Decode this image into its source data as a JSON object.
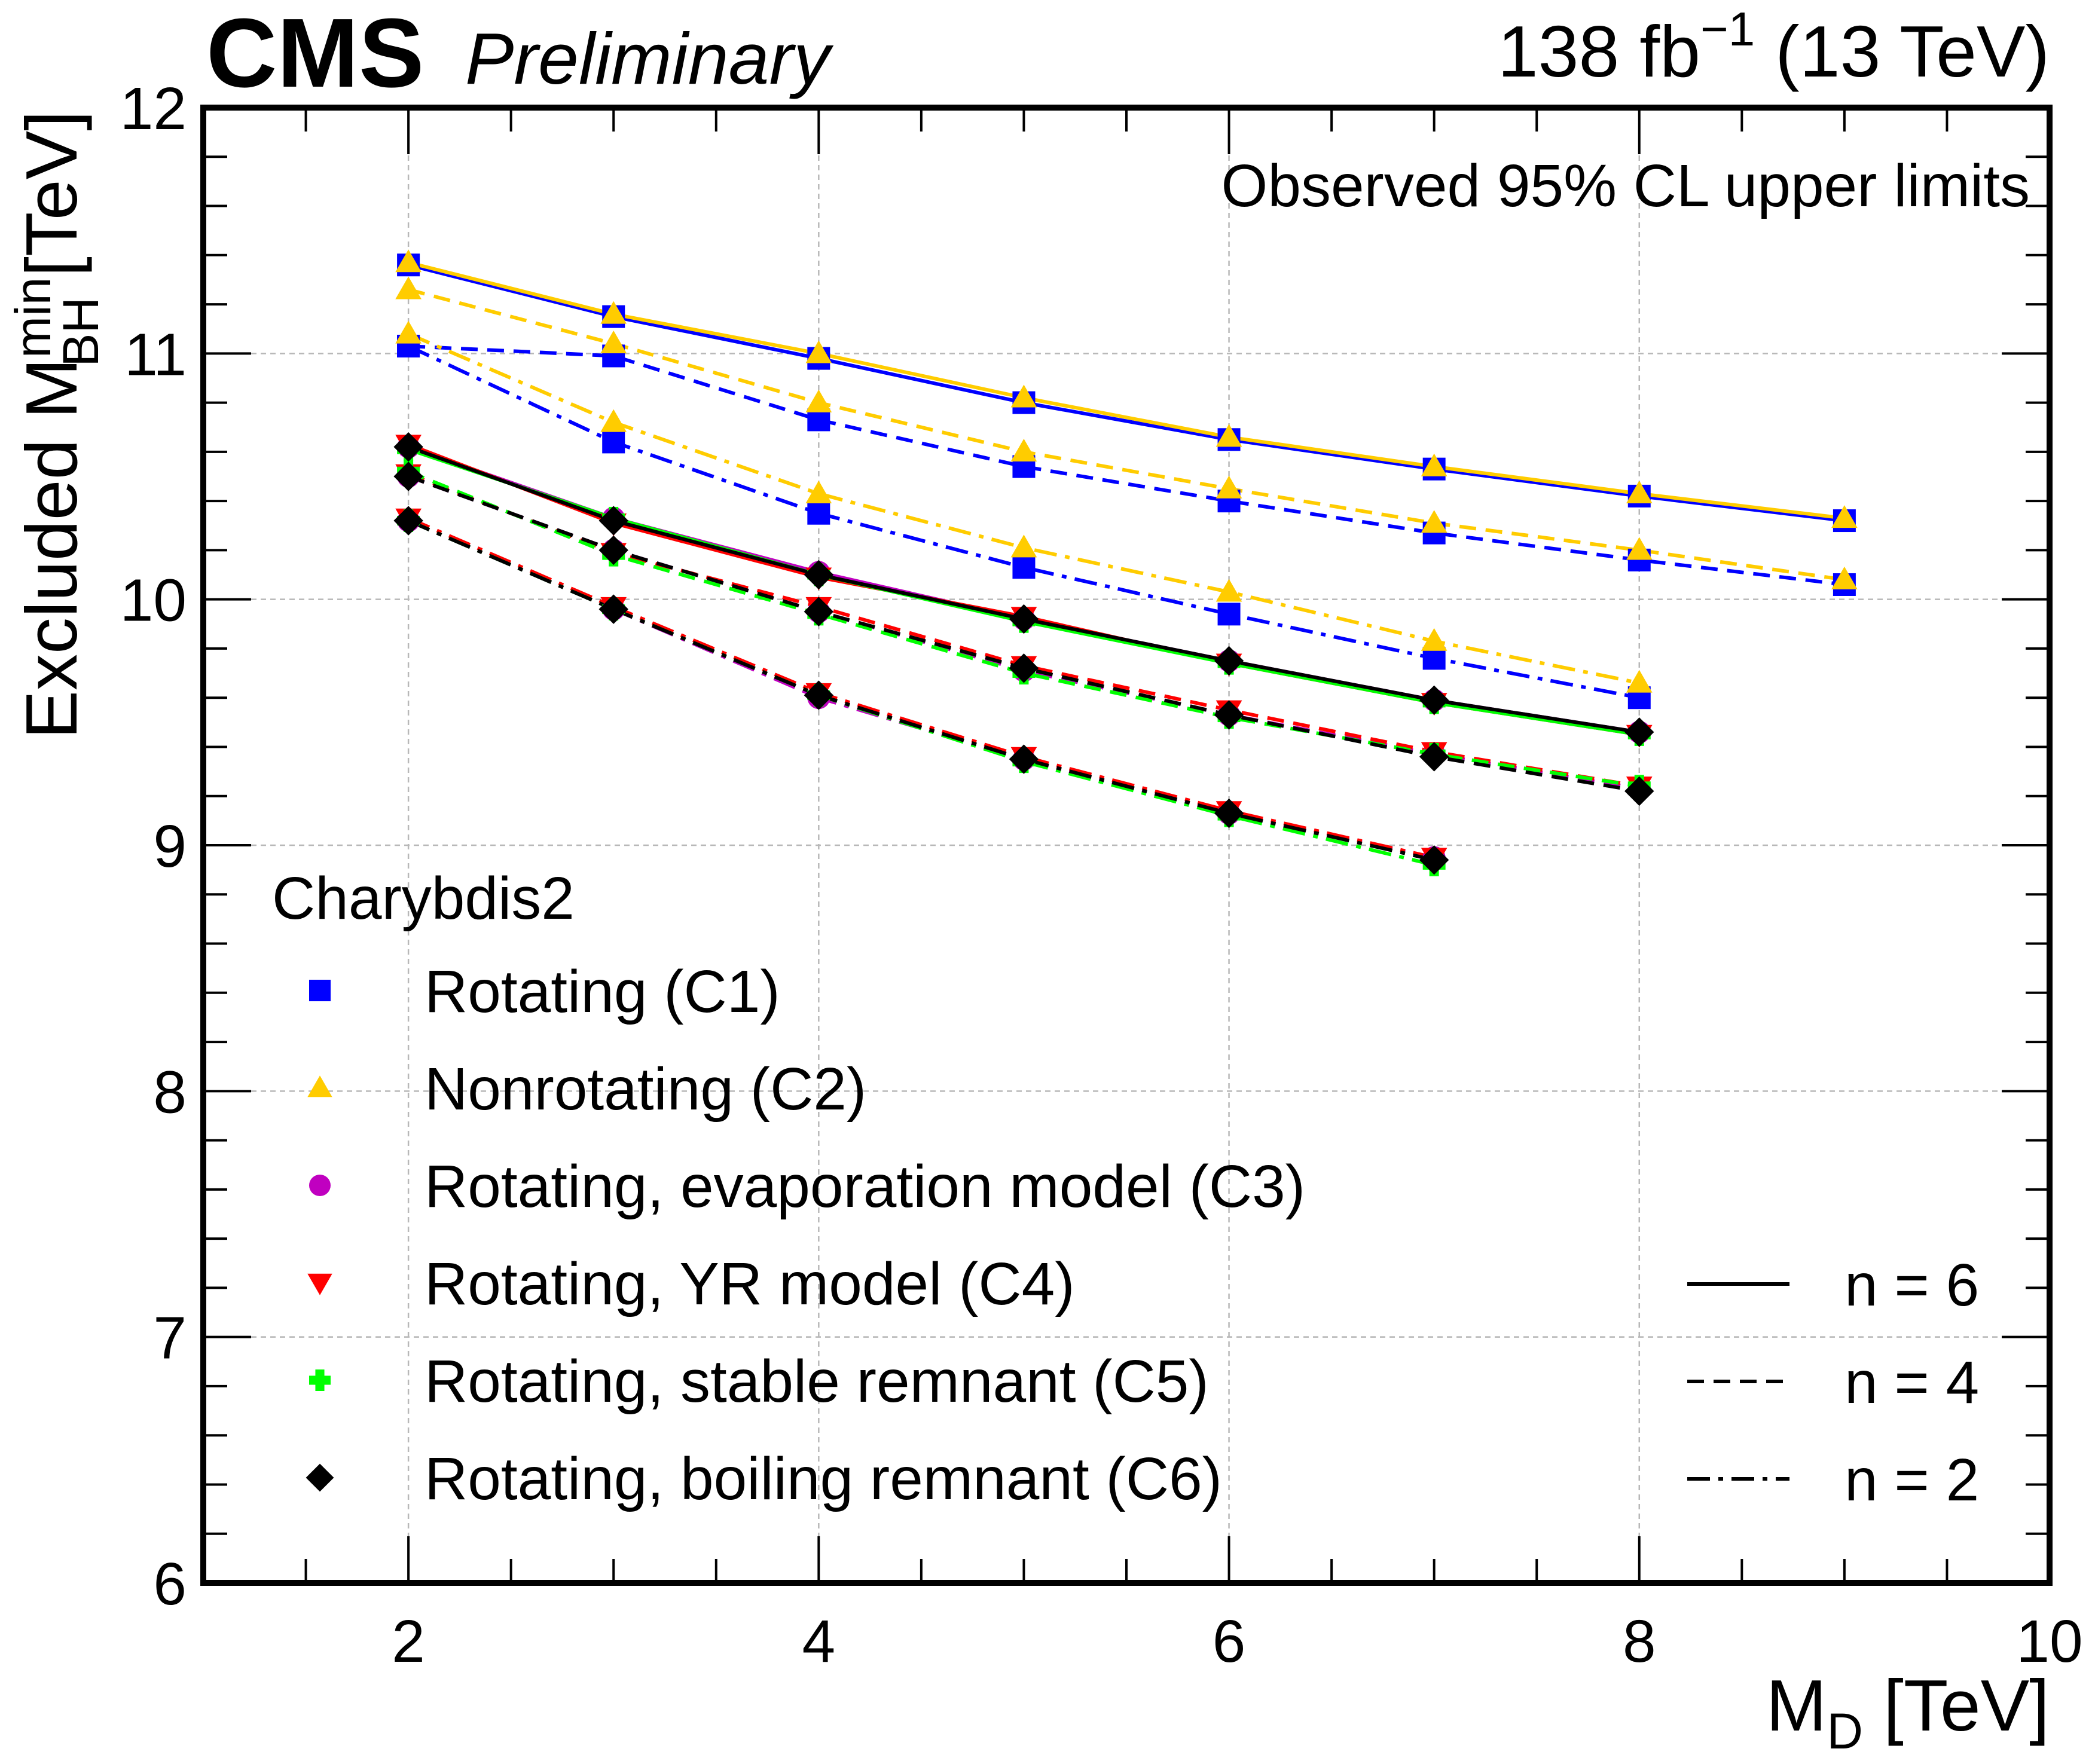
{
  "header": {
    "experiment": "CMS",
    "status": "Preliminary",
    "lumi_value": "138 fb",
    "lumi_exp": "−1",
    "energy": " (13 TeV)"
  },
  "chart_data": {
    "type": "line",
    "title": "Observed 95% CL upper limits",
    "xlabel": {
      "main": "M",
      "sub": "D",
      "unit": " [TeV]"
    },
    "ylabel": {
      "main": "Excluded M",
      "sup": "min",
      "sub": "BH",
      "unit": " [TeV]"
    },
    "xlim": [
      1,
      10
    ],
    "ylim": [
      6,
      12
    ],
    "xticks": [
      2,
      4,
      6,
      8,
      10
    ],
    "yticks": [
      6,
      7,
      8,
      9,
      10,
      11,
      12
    ],
    "grid": true,
    "legend_header": "Charybdis2",
    "legend_style_title": "",
    "line_styles": [
      {
        "n": 6,
        "label": "n = 6",
        "dash": "solid"
      },
      {
        "n": 4,
        "label": "n = 4",
        "dash": "dashed"
      },
      {
        "n": 2,
        "label": "n = 2",
        "dash": "dashdot"
      }
    ],
    "models": [
      {
        "id": "C1",
        "label": "Rotating (C1)",
        "marker": "square",
        "color": "#0000ff",
        "curves": [
          {
            "n": 6,
            "x": [
              2,
              3,
              4,
              5,
              6,
              7,
              8,
              9
            ],
            "y": [
              11.36,
              11.15,
              10.98,
              10.8,
              10.65,
              10.53,
              10.42,
              10.32
            ]
          },
          {
            "n": 4,
            "x": [
              2,
              3,
              4,
              5,
              6,
              7,
              8,
              9
            ],
            "y": [
              11.03,
              10.99,
              10.73,
              10.54,
              10.4,
              10.27,
              10.16,
              10.06
            ]
          },
          {
            "n": 2,
            "x": [
              2,
              3,
              4,
              5,
              6,
              7,
              8
            ],
            "y": [
              11.03,
              10.64,
              10.35,
              10.13,
              9.94,
              9.76,
              9.6
            ]
          }
        ]
      },
      {
        "id": "C2",
        "label": "Nonrotating (C2)",
        "marker": "triangle-up",
        "color": "#ffcc00",
        "curves": [
          {
            "n": 6,
            "x": [
              2,
              3,
              4,
              5,
              6,
              7,
              8,
              9
            ],
            "y": [
              11.37,
              11.16,
              11.0,
              10.82,
              10.66,
              10.54,
              10.43,
              10.33
            ]
          },
          {
            "n": 4,
            "x": [
              2,
              3,
              4,
              5,
              6,
              7,
              8,
              9
            ],
            "y": [
              11.26,
              11.04,
              10.8,
              10.6,
              10.45,
              10.31,
              10.2,
              10.08
            ]
          },
          {
            "n": 2,
            "x": [
              2,
              3,
              4,
              5,
              6,
              7,
              8
            ],
            "y": [
              11.08,
              10.72,
              10.43,
              10.21,
              10.03,
              9.83,
              9.66
            ]
          }
        ]
      },
      {
        "id": "C3",
        "label": "Rotating, evaporation model (C3)",
        "marker": "circle",
        "color": "#c000c0",
        "curves": [
          {
            "n": 6,
            "x": [
              2,
              3,
              4,
              5,
              6,
              7,
              8
            ],
            "y": [
              10.62,
              10.33,
              10.11,
              9.92,
              9.75,
              9.59,
              9.46
            ]
          },
          {
            "n": 4,
            "x": [
              2,
              3,
              4,
              5,
              6,
              7,
              8
            ],
            "y": [
              10.5,
              10.2,
              9.95,
              9.71,
              9.53,
              9.37,
              9.23
            ]
          },
          {
            "n": 2,
            "x": [
              2,
              3,
              4,
              5,
              6,
              7
            ],
            "y": [
              10.32,
              9.96,
              9.6,
              9.35,
              9.13,
              8.95
            ]
          }
        ]
      },
      {
        "id": "C4",
        "label": "Rotating, YR model (C4)",
        "marker": "triangle-down",
        "color": "#ff0000",
        "curves": [
          {
            "n": 6,
            "x": [
              2,
              3,
              4,
              5,
              6,
              7,
              8
            ],
            "y": [
              10.63,
              10.31,
              10.09,
              9.93,
              9.74,
              9.58,
              9.45
            ]
          },
          {
            "n": 4,
            "x": [
              2,
              3,
              4,
              5,
              6,
              7,
              8
            ],
            "y": [
              10.51,
              10.19,
              9.97,
              9.73,
              9.55,
              9.38,
              9.24
            ]
          },
          {
            "n": 2,
            "x": [
              2,
              3,
              4,
              5,
              6,
              7
            ],
            "y": [
              10.33,
              9.97,
              9.62,
              9.36,
              9.14,
              8.95
            ]
          }
        ]
      },
      {
        "id": "C5",
        "label": "Rotating, stable remnant (C5)",
        "marker": "cross",
        "color": "#00ff00",
        "curves": [
          {
            "n": 6,
            "x": [
              2,
              3,
              4,
              5,
              6,
              7,
              8
            ],
            "y": [
              10.61,
              10.33,
              10.1,
              9.91,
              9.74,
              9.58,
              9.45
            ]
          },
          {
            "n": 4,
            "x": [
              2,
              3,
              4,
              5,
              6,
              7,
              8
            ],
            "y": [
              10.52,
              10.18,
              9.94,
              9.7,
              9.52,
              9.37,
              9.24
            ]
          },
          {
            "n": 2,
            "x": [
              2,
              3,
              4,
              5,
              6,
              7
            ],
            "y": [
              10.32,
              9.96,
              9.61,
              9.34,
              9.12,
              8.92
            ]
          }
        ]
      },
      {
        "id": "C6",
        "label": "Rotating, boiling remnant (C6)",
        "marker": "diamond",
        "color": "#000000",
        "curves": [
          {
            "n": 6,
            "x": [
              2,
              3,
              4,
              5,
              6,
              7,
              8
            ],
            "y": [
              10.62,
              10.32,
              10.1,
              9.92,
              9.75,
              9.59,
              9.46
            ]
          },
          {
            "n": 4,
            "x": [
              2,
              3,
              4,
              5,
              6,
              7,
              8
            ],
            "y": [
              10.5,
              10.2,
              9.95,
              9.72,
              9.53,
              9.36,
              9.22
            ]
          },
          {
            "n": 2,
            "x": [
              2,
              3,
              4,
              5,
              6,
              7
            ],
            "y": [
              10.32,
              9.96,
              9.61,
              9.35,
              9.13,
              8.94
            ]
          }
        ]
      }
    ]
  }
}
